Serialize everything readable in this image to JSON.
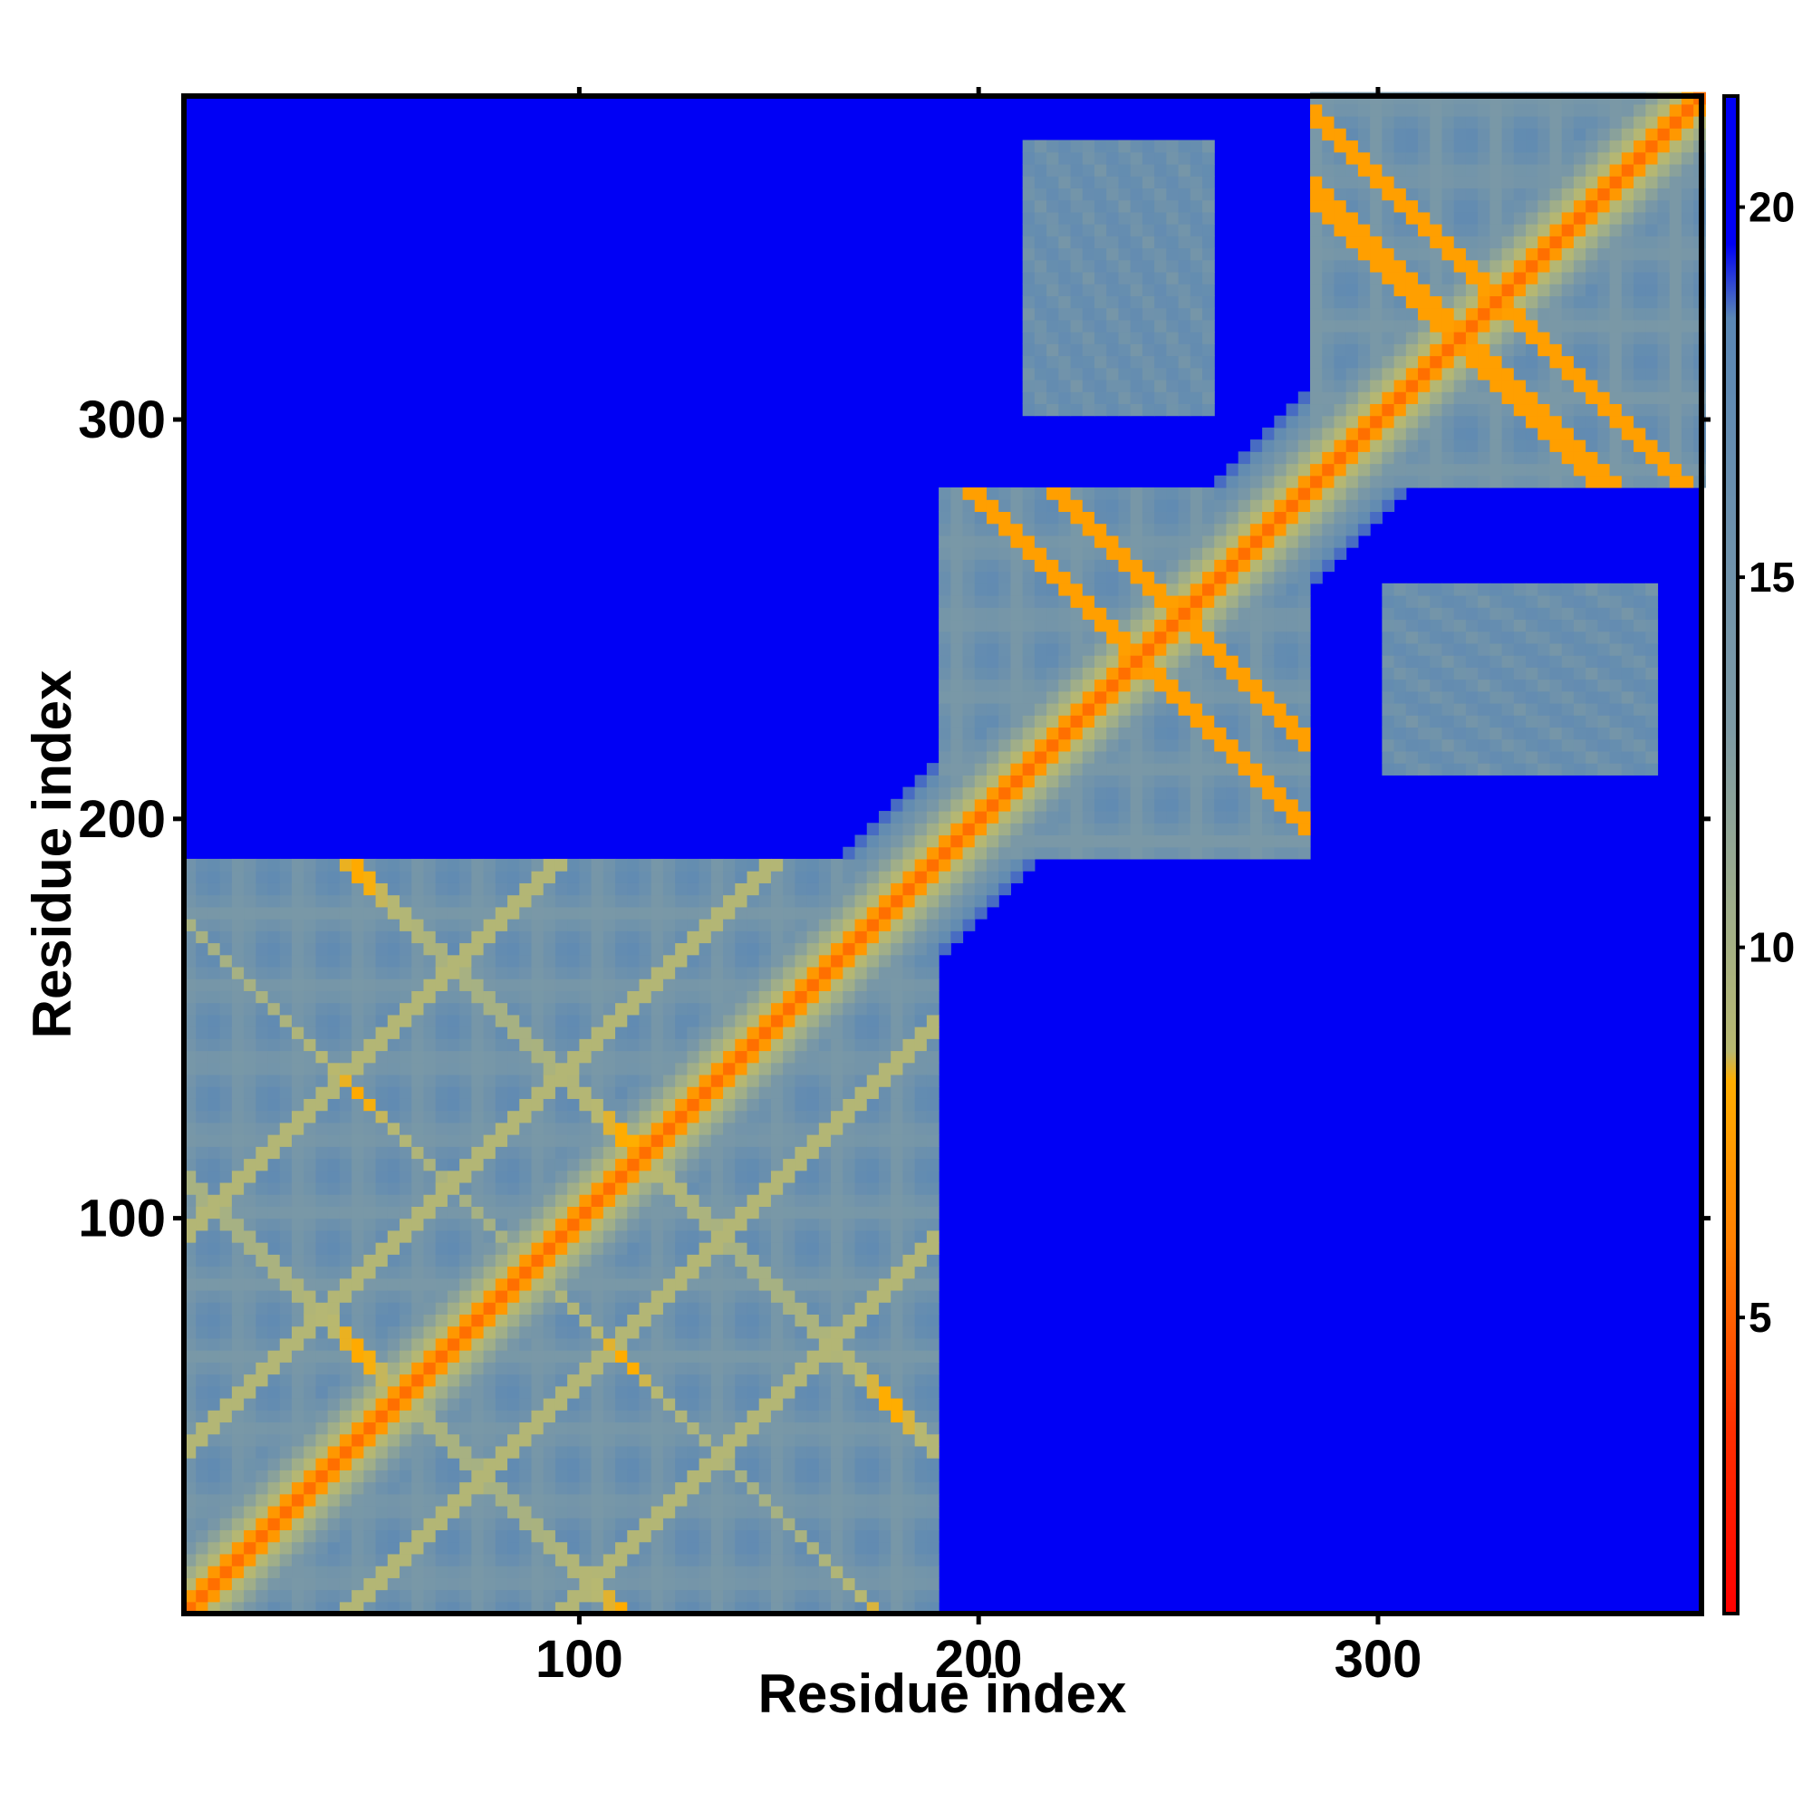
{
  "chart_data": {
    "type": "heatmap",
    "title": "",
    "xlabel": "Residue index",
    "ylabel": "Residue index",
    "xlim": [
      1,
      381
    ],
    "ylim": [
      1,
      381
    ],
    "x_ticks": [
      {
        "value": 100,
        "label": "100"
      },
      {
        "value": 200,
        "label": "200"
      },
      {
        "value": 300,
        "label": "300"
      }
    ],
    "y_ticks": [
      {
        "value": 100,
        "label": "100"
      },
      {
        "value": 200,
        "label": "200"
      },
      {
        "value": 300,
        "label": "300"
      }
    ],
    "colorbar": {
      "range": [
        1,
        21.5
      ],
      "ticks": [
        {
          "value": 5,
          "label": "5"
        },
        {
          "value": 10,
          "label": "10"
        },
        {
          "value": 15,
          "label": "15"
        },
        {
          "value": 20,
          "label": "20"
        }
      ],
      "stops": [
        {
          "value": 1,
          "color": "#ff0000"
        },
        {
          "value": 3.5,
          "color": "#ff3000"
        },
        {
          "value": 6,
          "color": "#ff7f00"
        },
        {
          "value": 8.2,
          "color": "#ffae00"
        },
        {
          "value": 8.6,
          "color": "#b8b870"
        },
        {
          "value": 10.5,
          "color": "#9fae8a"
        },
        {
          "value": 13,
          "color": "#7d9aa5"
        },
        {
          "value": 18.5,
          "color": "#5a87b5"
        },
        {
          "value": 19.5,
          "color": "#0000f5"
        },
        {
          "value": 21.5,
          "color": "#0000f5"
        }
      ]
    },
    "colors": {
      "far": "#0000f5",
      "mid": "#5b86b6",
      "near": "#ff0000"
    },
    "domains": [
      [
        1,
        190
      ],
      [
        190,
        282
      ],
      [
        282,
        381
      ]
    ],
    "grid": false
  }
}
